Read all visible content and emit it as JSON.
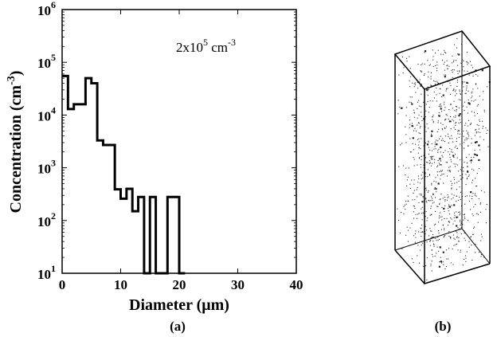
{
  "panel_a_label": "(a)",
  "panel_b_label": "(b)",
  "chart_data": {
    "type": "step-histogram",
    "xlabel_prefix": "Diameter (",
    "xlabel_mu": "μ",
    "xlabel_suffix": "m)",
    "ylabel_prefix": "Concentration (cm",
    "ylabel_exp": "-3",
    "ylabel_suffix": ")",
    "annotation": {
      "base": "2x10",
      "exp": "5",
      "unit": " cm",
      "unit_exp": "-3"
    },
    "xlim": [
      0,
      40
    ],
    "ylim": [
      10,
      1000000
    ],
    "yscale": "log",
    "x_ticks": [
      "0",
      "10",
      "20",
      "30",
      "40"
    ],
    "y_tick_base": "10",
    "y_tick_exponents": [
      "1",
      "2",
      "3",
      "4",
      "5",
      "6"
    ],
    "bin_edges": [
      0,
      1,
      2,
      3,
      4,
      5,
      6,
      7,
      8,
      9,
      10,
      11,
      12,
      13,
      14,
      15,
      16,
      17,
      18,
      19,
      20,
      21
    ],
    "values": [
      55000,
      13000,
      16000,
      16000,
      50000,
      40000,
      3300,
      2700,
      2700,
      390,
      260,
      400,
      150,
      280,
      10,
      280,
      10,
      10,
      280,
      280,
      10
    ]
  },
  "panel_b": {
    "particle_count": 1000
  }
}
